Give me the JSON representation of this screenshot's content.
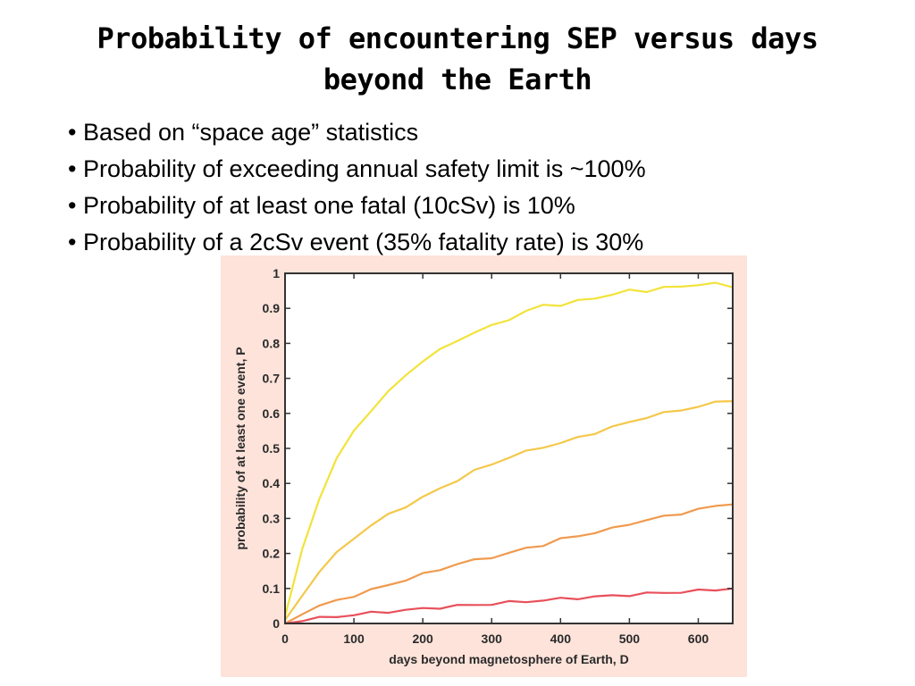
{
  "slide": {
    "title_line1": "Probability of encountering SEP versus days",
    "title_line2": "beyond the Earth",
    "bullets": [
      "Based on “space age” statistics",
      "Probability of exceeding annual safety limit is ~100%",
      "Probability of at least one fatal (10cSv) is 10%",
      "Probability of a 2cSv event (35% fatality rate) is 30%"
    ]
  },
  "colors": {
    "figure_background": "#fde3da",
    "plot_background": "#ffffff"
  },
  "chart_data": {
    "type": "line",
    "title": "",
    "xlabel": "days beyond magnetosphere of Earth, D",
    "ylabel": "probability of at least one event, P",
    "xlim": [
      0,
      650
    ],
    "ylim": [
      0,
      1
    ],
    "xticks": [
      0,
      100,
      200,
      300,
      400,
      500,
      600
    ],
    "yticks": [
      0,
      0.1,
      0.2,
      0.3,
      0.4,
      0.5,
      0.6,
      0.7,
      0.8,
      0.9,
      1
    ],
    "ytick_labels": [
      "0",
      "0.1",
      "0.2",
      "0.3",
      "0.4",
      "0.5",
      "0.6",
      "0.7",
      "0.8",
      "0.9",
      "1"
    ],
    "grid": false,
    "x": [
      0,
      25,
      50,
      75,
      100,
      125,
      150,
      175,
      200,
      225,
      250,
      275,
      300,
      325,
      350,
      375,
      400,
      425,
      450,
      475,
      500,
      525,
      550,
      575,
      600,
      625,
      650
    ],
    "series": [
      {
        "color": "#f2e33a",
        "values": [
          0.02,
          0.21,
          0.36,
          0.47,
          0.55,
          0.61,
          0.66,
          0.71,
          0.75,
          0.78,
          0.81,
          0.83,
          0.85,
          0.87,
          0.89,
          0.91,
          0.91,
          0.92,
          0.93,
          0.94,
          0.95,
          0.95,
          0.96,
          0.96,
          0.97,
          0.97,
          0.96
        ]
      },
      {
        "color": "#f4c84a",
        "values": [
          0.01,
          0.08,
          0.15,
          0.2,
          0.245,
          0.28,
          0.31,
          0.335,
          0.36,
          0.385,
          0.41,
          0.435,
          0.455,
          0.475,
          0.49,
          0.505,
          0.515,
          0.53,
          0.545,
          0.56,
          0.575,
          0.59,
          0.6,
          0.61,
          0.62,
          0.63,
          0.635
        ]
      },
      {
        "color": "#f09a4e",
        "values": [
          0.0,
          0.03,
          0.05,
          0.065,
          0.08,
          0.095,
          0.11,
          0.125,
          0.14,
          0.155,
          0.17,
          0.18,
          0.19,
          0.2,
          0.215,
          0.225,
          0.24,
          0.25,
          0.26,
          0.27,
          0.285,
          0.295,
          0.305,
          0.315,
          0.325,
          0.335,
          0.34
        ]
      },
      {
        "color": "#e8505a",
        "values": [
          0.0,
          0.01,
          0.015,
          0.02,
          0.025,
          0.03,
          0.034,
          0.038,
          0.042,
          0.046,
          0.05,
          0.053,
          0.056,
          0.06,
          0.063,
          0.066,
          0.07,
          0.073,
          0.076,
          0.079,
          0.082,
          0.085,
          0.088,
          0.09,
          0.093,
          0.097,
          0.1
        ]
      }
    ]
  }
}
